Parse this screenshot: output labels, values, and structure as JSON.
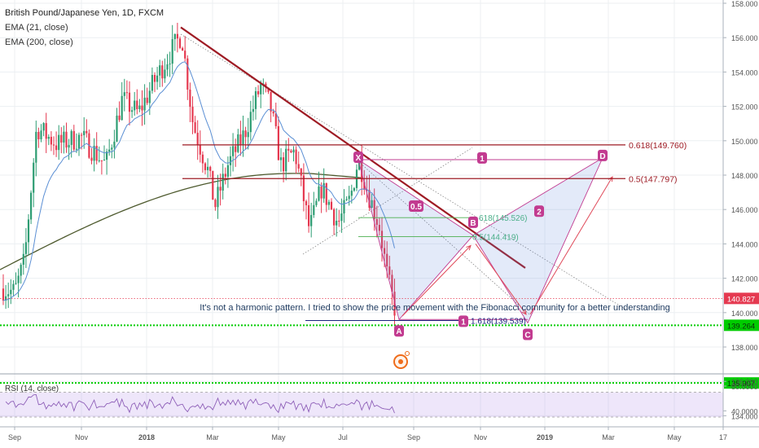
{
  "chart_data": {
    "type": "line",
    "title": "British Pound/Japanese Yen, 1D, FXCM",
    "indicators": [
      "EMA (21, close)",
      "EMA (200, close)"
    ],
    "x_ticks": [
      "Sep",
      "Nov",
      "2018",
      "Mar",
      "May",
      "Jul",
      "Sep",
      "Nov",
      "2019",
      "Mar",
      "May",
      "17"
    ],
    "y_ticks": [
      "158.000",
      "156.000",
      "154.000",
      "152.000",
      "150.000",
      "148.000",
      "146.000",
      "144.000",
      "142.000",
      "140.000",
      "138.000",
      "136.000",
      "134.000"
    ],
    "ylim": [
      132.6,
      158.4
    ],
    "price_label": "140.827",
    "green_level_labels": [
      "139.264",
      "135.907"
    ],
    "green_levels": [
      139.264,
      135.907
    ],
    "fib_labels": {
      "f0618": "0.618(149.760)",
      "f05": "0.5(147.797)",
      "f618b": "618(145.526)",
      "f5b": "0.5(144.419)",
      "f1618": "1.618(139.539)"
    },
    "pattern_points": [
      "X",
      "A",
      "B",
      "C",
      "D"
    ],
    "leg_markers": [
      "1",
      "2",
      "0.5",
      "1"
    ],
    "annotation": "It's not a harmonic pattern. I tried to show the price movement with the Fibonacci community for a better understanding",
    "rsi_label": "RSI (14, close)",
    "rsi_ticks": [
      "80.0000",
      "40.0000"
    ],
    "colors": {
      "up": "#2e9d73",
      "down": "#e53950",
      "ema21": "#5b8fd4",
      "ema200": "#4e5a2e",
      "trend": "#9e1b24",
      "pattern": "#c23b90",
      "green_level": "#00cc00",
      "rsi": "#8e5fb8"
    }
  }
}
